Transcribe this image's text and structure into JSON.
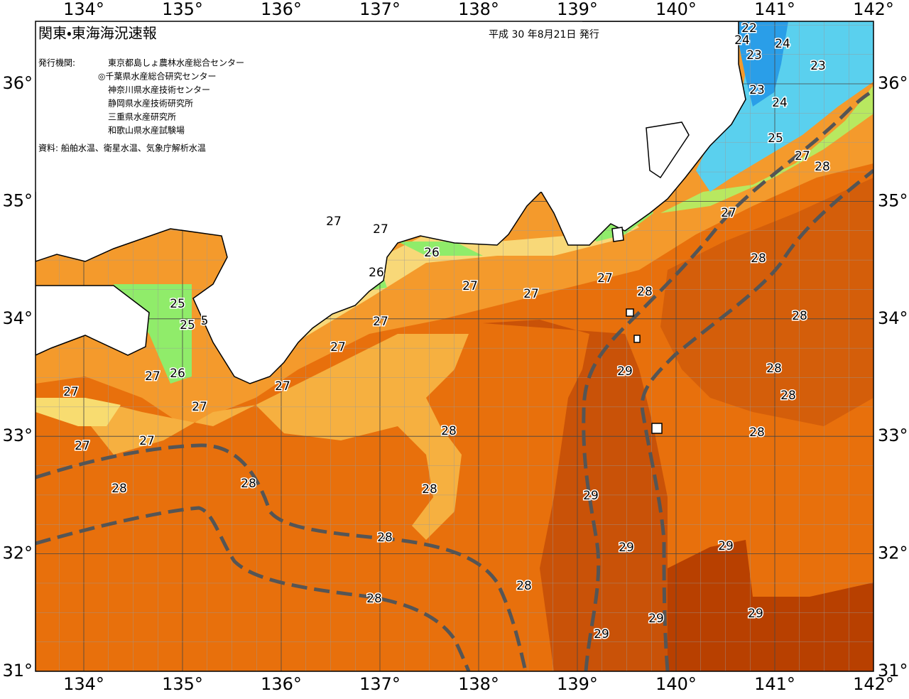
{
  "header": {
    "title": "関東・東海海況速報",
    "issued": "平成 30 年8月21日 発行"
  },
  "publisher": {
    "label": "発行機関:",
    "organizations": [
      "東京都島しょ農林水産総合センター",
      "◎千葉県水産総合研究センター",
      "神奈川県水産技術センター",
      "静岡県水産技術研究所",
      "三重県水産研究所",
      "和歌山県水産試験場"
    ]
  },
  "sources": "資料: 船舶水温、衛星水温、気象庁解析水温",
  "longitude_labels": [
    "134°",
    "135°",
    "136°",
    "137°",
    "138°",
    "139°",
    "140°",
    "141°",
    "142°"
  ],
  "latitude_labels": [
    "36°",
    "35°",
    "34°",
    "33°",
    "32°",
    "31°"
  ],
  "contour_labels": [
    "22",
    "24",
    "24",
    "23",
    "23",
    "23",
    "24",
    "25",
    "27",
    "28",
    "27",
    "28",
    "27",
    "27",
    "26",
    "26",
    "27",
    "27",
    "27",
    "28",
    "28",
    "25",
    "25",
    "5",
    "27",
    "27",
    "27",
    "26",
    "27",
    "27",
    "27",
    "29",
    "28",
    "28",
    "28",
    "28",
    "27",
    "27",
    "28",
    "28",
    "28",
    "29",
    "28",
    "29",
    "29",
    "28",
    "28",
    "29",
    "29",
    "29"
  ]
}
